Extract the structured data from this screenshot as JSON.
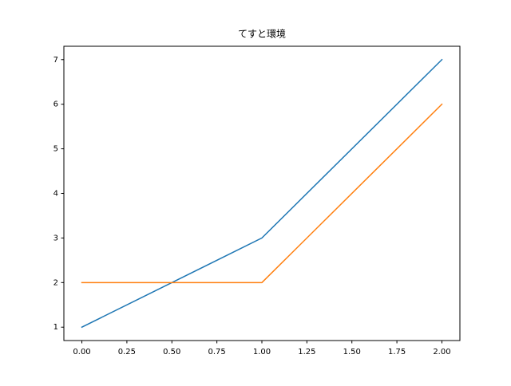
{
  "chart_data": {
    "type": "line",
    "title": "てすと環境",
    "x": [
      0,
      1,
      2
    ],
    "series": [
      {
        "color": "#1f77b4",
        "values": [
          1,
          3,
          7
        ]
      },
      {
        "color": "#ff7f0e",
        "values": [
          2,
          2,
          6
        ]
      }
    ],
    "xlim": [
      -0.1,
      2.1
    ],
    "xticks": [
      {
        "value": 0,
        "label": "0.00"
      },
      {
        "value": 0.25,
        "label": "0.25"
      },
      {
        "value": 0.5,
        "label": "0.50"
      },
      {
        "value": 0.75,
        "label": "0.75"
      },
      {
        "value": 1,
        "label": "1.00"
      },
      {
        "value": 1.25,
        "label": "1.25"
      },
      {
        "value": 1.5,
        "label": "1.50"
      },
      {
        "value": 1.75,
        "label": "1.75"
      },
      {
        "value": 2,
        "label": "2.00"
      }
    ],
    "ylim": [
      0.7,
      7.3
    ],
    "yticks": [
      1,
      2,
      3,
      4,
      5,
      6,
      7
    ],
    "grid": false
  }
}
